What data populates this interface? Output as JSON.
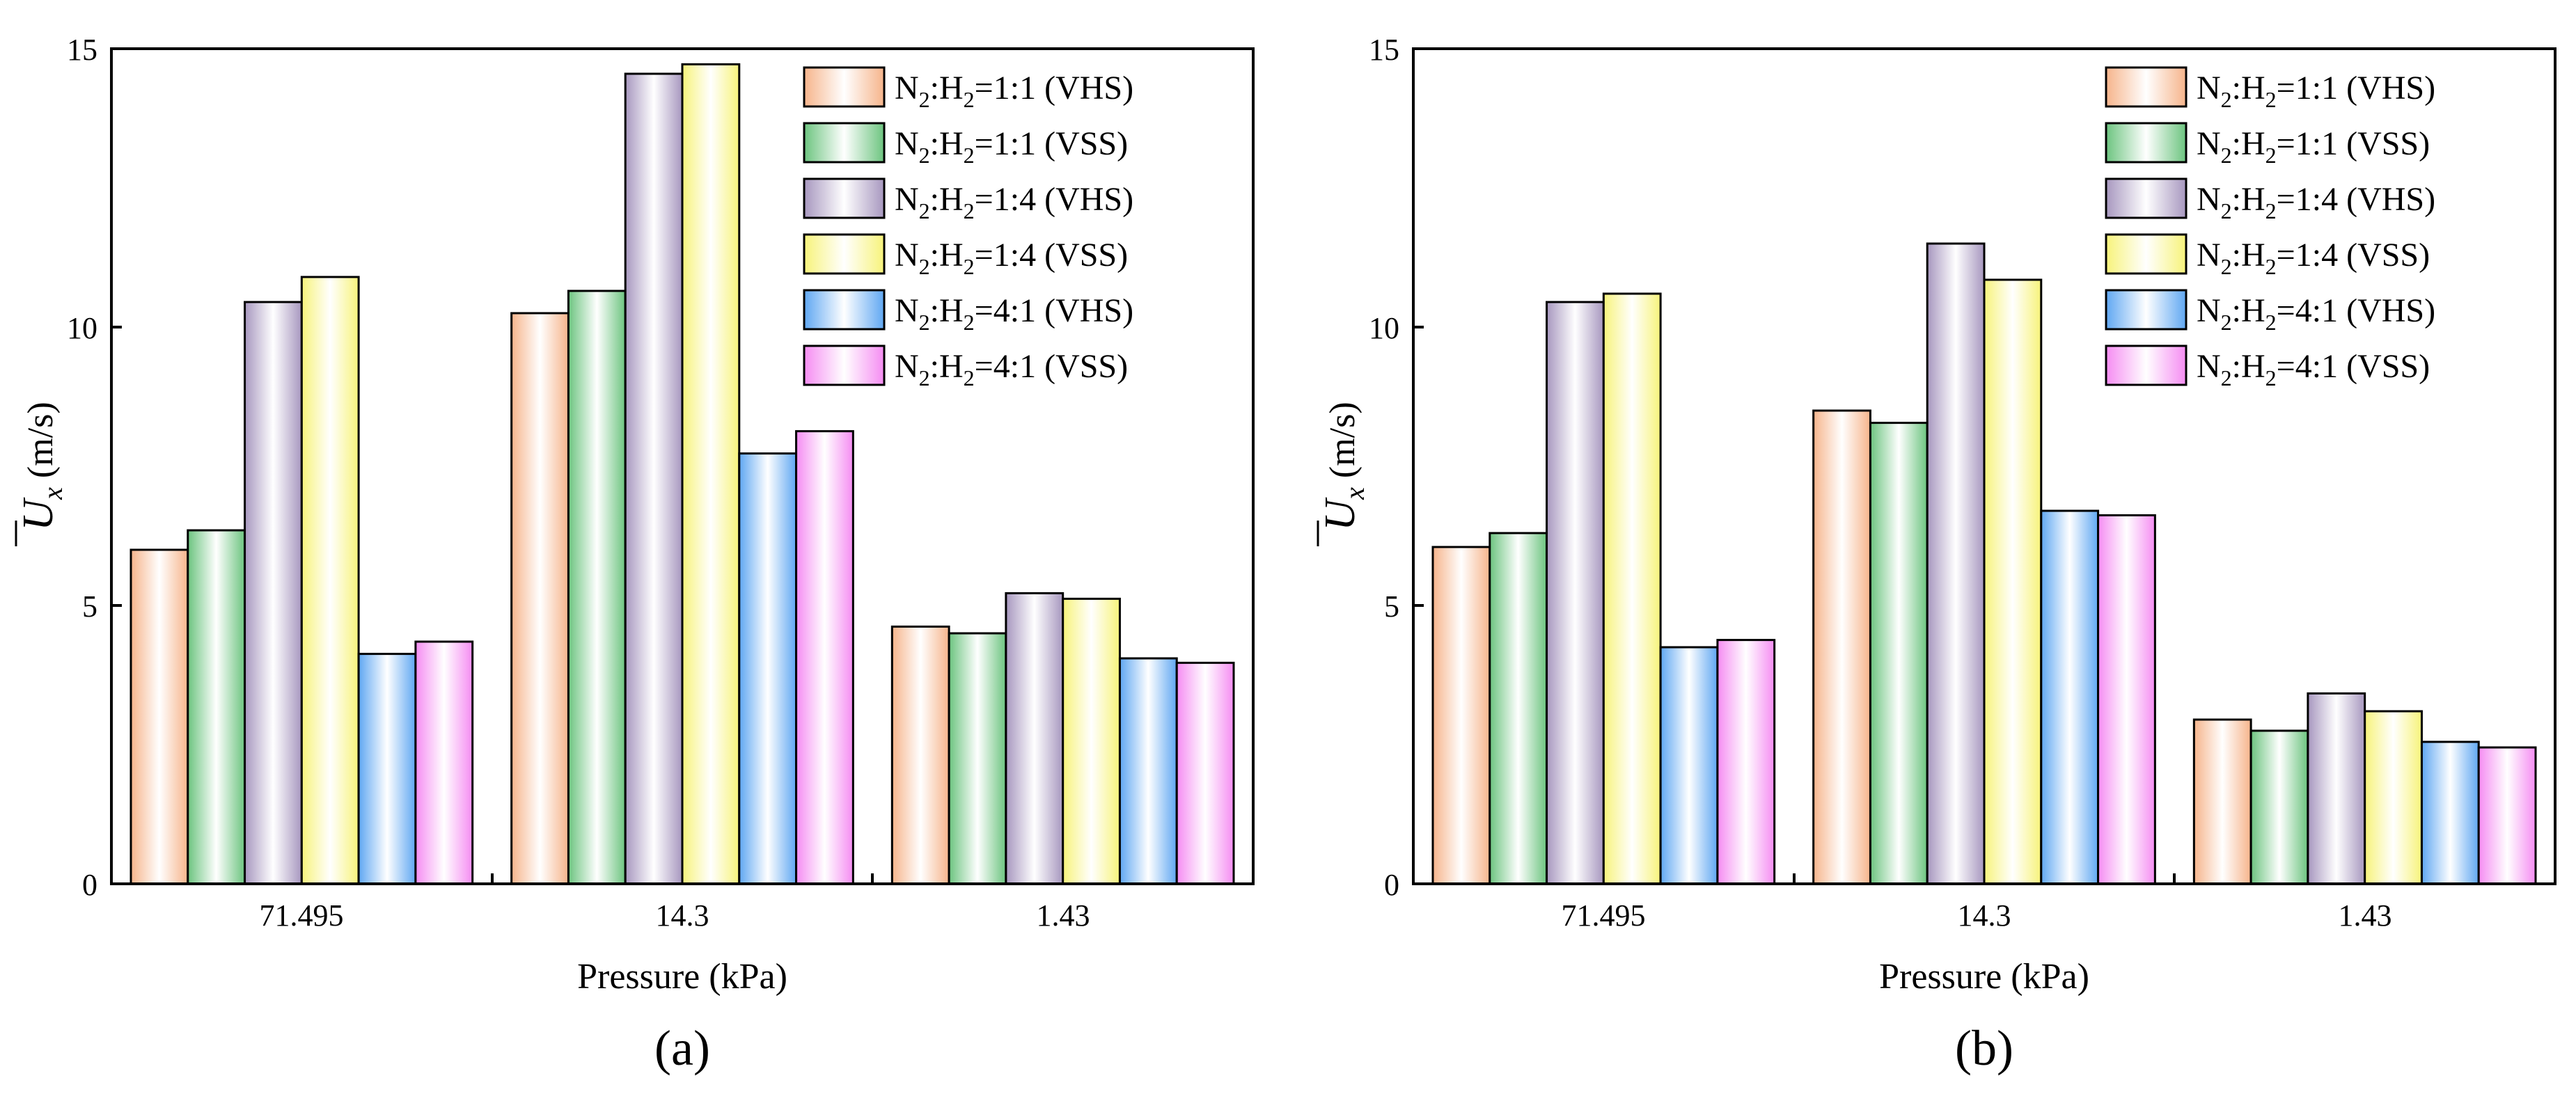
{
  "chart_data": [
    {
      "type": "bar",
      "panel_label": "(a)",
      "xlabel": "Pressure (kPa)",
      "ylabel": "U̅x (m/s)",
      "ylim": [
        0,
        15
      ],
      "yticks": [
        "0",
        "5",
        "10",
        "15"
      ],
      "categories": [
        "71.495",
        "14.3",
        "1.43"
      ],
      "legend_position": "top-right",
      "grid": false,
      "series": [
        {
          "name": "N2:H2=1:1 (VHS)",
          "values": [
            6.0,
            10.25,
            4.62
          ]
        },
        {
          "name": "N2:H2=1:1 (VSS)",
          "values": [
            6.35,
            10.65,
            4.5
          ]
        },
        {
          "name": "N2:H2=1:4 (VHS)",
          "values": [
            10.45,
            14.55,
            5.22
          ]
        },
        {
          "name": "N2:H2=1:4 (VSS)",
          "values": [
            10.9,
            14.72,
            5.12
          ]
        },
        {
          "name": "N2:H2=4:1 (VHS)",
          "values": [
            4.13,
            7.73,
            4.05
          ]
        },
        {
          "name": "N2:H2=4:1 (VSS)",
          "values": [
            4.35,
            8.13,
            3.97
          ]
        }
      ]
    },
    {
      "type": "bar",
      "panel_label": "(b)",
      "xlabel": "Pressure (kPa)",
      "ylabel": "U̅x (m/s)",
      "ylim": [
        0,
        15
      ],
      "yticks": [
        "0",
        "5",
        "10",
        "15"
      ],
      "categories": [
        "71.495",
        "14.3",
        "1.43"
      ],
      "legend_position": "top-right",
      "grid": false,
      "series": [
        {
          "name": "N2:H2=1:1 (VHS)",
          "values": [
            6.05,
            8.5,
            2.95
          ]
        },
        {
          "name": "N2:H2=1:1 (VSS)",
          "values": [
            6.3,
            8.28,
            2.75
          ]
        },
        {
          "name": "N2:H2=1:4 (VHS)",
          "values": [
            10.45,
            11.5,
            3.42
          ]
        },
        {
          "name": "N2:H2=1:4 (VSS)",
          "values": [
            10.6,
            10.85,
            3.1
          ]
        },
        {
          "name": "N2:H2=4:1 (VHS)",
          "values": [
            4.25,
            6.7,
            2.55
          ]
        },
        {
          "name": "N2:H2=4:1 (VSS)",
          "values": [
            4.38,
            6.62,
            2.45
          ]
        }
      ]
    }
  ],
  "legend_labels": [
    {
      "a": "N",
      "s1": "2",
      "b": ":H",
      "s2": "2",
      "c": "=1:1 (VHS)"
    },
    {
      "a": "N",
      "s1": "2",
      "b": ":H",
      "s2": "2",
      "c": "=1:1 (VSS)"
    },
    {
      "a": "N",
      "s1": "2",
      "b": ":H",
      "s2": "2",
      "c": "=1:4 (VHS)"
    },
    {
      "a": "N",
      "s1": "2",
      "b": ":H",
      "s2": "2",
      "c": "=1:4 (VSS)"
    },
    {
      "a": "N",
      "s1": "2",
      "b": ":H",
      "s2": "2",
      "c": "=4:1 (VHS)"
    },
    {
      "a": "N",
      "s1": "2",
      "b": ":H",
      "s2": "2",
      "c": "=4:1 (VSS)"
    }
  ],
  "ylabel_parts": {
    "symbol": "U",
    "subscript": "x",
    "unit": " (m/s)"
  },
  "series_colors": [
    {
      "edge": "#f6b48b",
      "light": "#ffffff"
    },
    {
      "edge": "#6cc47f",
      "light": "#ffffff"
    },
    {
      "edge": "#a797bf",
      "light": "#ffffff"
    },
    {
      "edge": "#f7f37a",
      "light": "#ffffff"
    },
    {
      "edge": "#5fa7f2",
      "light": "#ffffff"
    },
    {
      "edge": "#f58cf2",
      "light": "#ffffff"
    }
  ]
}
